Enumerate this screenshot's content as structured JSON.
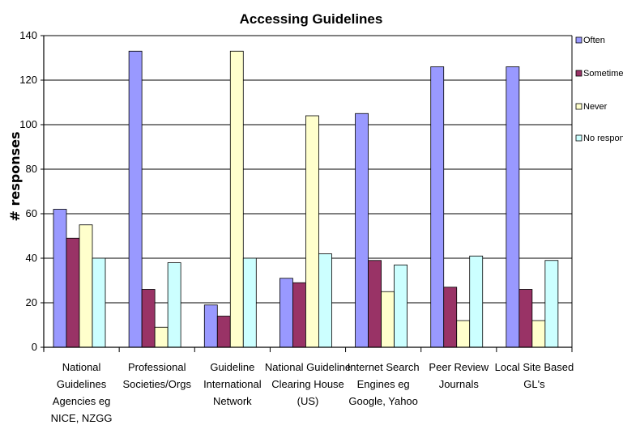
{
  "chart_data": {
    "type": "bar",
    "title": "Accessing Guidelines",
    "xlabel": "",
    "ylabel": "# responses",
    "ylim": [
      0,
      140
    ],
    "yticks": [
      0,
      20,
      40,
      60,
      80,
      100,
      120,
      140
    ],
    "grid": true,
    "legend_position": "right",
    "categories": [
      [
        "National",
        "Guidelines",
        "Agencies eg",
        "NICE, NZGG"
      ],
      [
        "Professional",
        "Societies/Orgs"
      ],
      [
        "Guideline",
        "International",
        "Network"
      ],
      [
        "National Guideline",
        "Clearing House",
        "(US)"
      ],
      [
        "Internet Search",
        "Engines eg",
        "Google, Yahoo"
      ],
      [
        "Peer  Review",
        "Journals"
      ],
      [
        "Local Site Based",
        "GL's"
      ]
    ],
    "series": [
      {
        "name": "Often",
        "color": "#9999ff",
        "values": [
          62,
          133,
          19,
          31,
          105,
          126,
          126
        ]
      },
      {
        "name": "Sometimes",
        "color": "#993366",
        "values": [
          49,
          26,
          14,
          29,
          39,
          27,
          26
        ]
      },
      {
        "name": "Never",
        "color": "#ffffcc",
        "values": [
          55,
          9,
          133,
          104,
          25,
          12,
          12
        ]
      },
      {
        "name": "No response",
        "color": "#ccffff",
        "values": [
          40,
          38,
          40,
          42,
          37,
          41,
          39
        ]
      }
    ]
  }
}
